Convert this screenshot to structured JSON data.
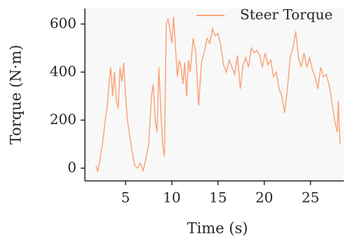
{
  "chart_data": {
    "type": "line",
    "xlabel": "Time (s)",
    "ylabel": "Torque (N·m)",
    "x": [
      1.8,
      2.0,
      2.2,
      2.5,
      2.8,
      3.0,
      3.2,
      3.4,
      3.6,
      3.8,
      4.0,
      4.2,
      4.4,
      4.6,
      4.8,
      5.0,
      5.2,
      5.5,
      5.8,
      6.0,
      6.3,
      6.6,
      6.9,
      7.2,
      7.5,
      7.8,
      8.0,
      8.2,
      8.4,
      8.6,
      8.8,
      9.0,
      9.2,
      9.4,
      9.6,
      9.8,
      10.0,
      10.2,
      10.4,
      10.6,
      10.8,
      11.0,
      11.2,
      11.4,
      11.6,
      11.8,
      12.0,
      12.3,
      12.6,
      12.9,
      13.2,
      13.5,
      13.8,
      14.1,
      14.4,
      14.7,
      15.0,
      15.3,
      15.6,
      15.9,
      16.2,
      16.5,
      16.8,
      17.1,
      17.4,
      17.7,
      18.0,
      18.3,
      18.6,
      18.9,
      19.2,
      19.5,
      19.8,
      20.1,
      20.4,
      20.7,
      21.0,
      21.3,
      21.6,
      21.9,
      22.2,
      22.5,
      22.8,
      23.1,
      23.4,
      23.7,
      24.0,
      24.3,
      24.6,
      24.9,
      25.2,
      25.5,
      25.8,
      26.1,
      26.4,
      26.7,
      27.0,
      27.3,
      27.6,
      27.9,
      28.0,
      28.2
    ],
    "series": [
      {
        "name": "Steer Torque",
        "color": "#f9a47c",
        "values": [
          10,
          -15,
          30,
          100,
          200,
          250,
          350,
          420,
          300,
          400,
          280,
          250,
          420,
          360,
          440,
          300,
          200,
          120,
          50,
          10,
          0,
          20,
          -10,
          40,
          100,
          300,
          350,
          200,
          150,
          420,
          250,
          100,
          50,
          600,
          620,
          580,
          520,
          630,
          500,
          380,
          450,
          420,
          350,
          440,
          300,
          450,
          400,
          540,
          480,
          260,
          440,
          480,
          540,
          520,
          580,
          550,
          560,
          510,
          430,
          400,
          450,
          420,
          390,
          470,
          330,
          430,
          460,
          420,
          500,
          480,
          490,
          470,
          420,
          480,
          430,
          450,
          380,
          400,
          330,
          300,
          230,
          330,
          460,
          500,
          570,
          460,
          420,
          480,
          420,
          460,
          410,
          380,
          330,
          420,
          380,
          390,
          350,
          280,
          200,
          150,
          280,
          100
        ]
      }
    ],
    "xlim": [
      0.6,
      28.6
    ],
    "ylim": [
      -53,
      665
    ],
    "xticks": [
      5,
      10,
      15,
      20,
      25
    ],
    "yticks": [
      0,
      200,
      400,
      600
    ],
    "legend": "upper right"
  }
}
